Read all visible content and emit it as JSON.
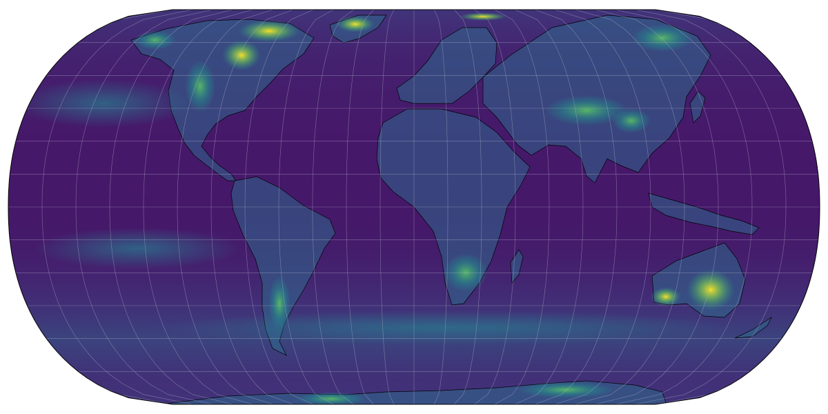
{
  "map": {
    "projection": "equal-earth-like",
    "colormap": "viridis",
    "colors": {
      "ocean_base": "#46186a",
      "ocean_deep": "#3f0f5c",
      "land_low": "#2f6a8e",
      "land_mid": "#25a584",
      "land_high": "#7ad151",
      "land_peak": "#fde725",
      "coastline": "#000000",
      "graticule": "#b3b3c8",
      "borders": "#8a8aa8"
    },
    "graticule": true,
    "coastlines": true,
    "country_borders": true
  }
}
